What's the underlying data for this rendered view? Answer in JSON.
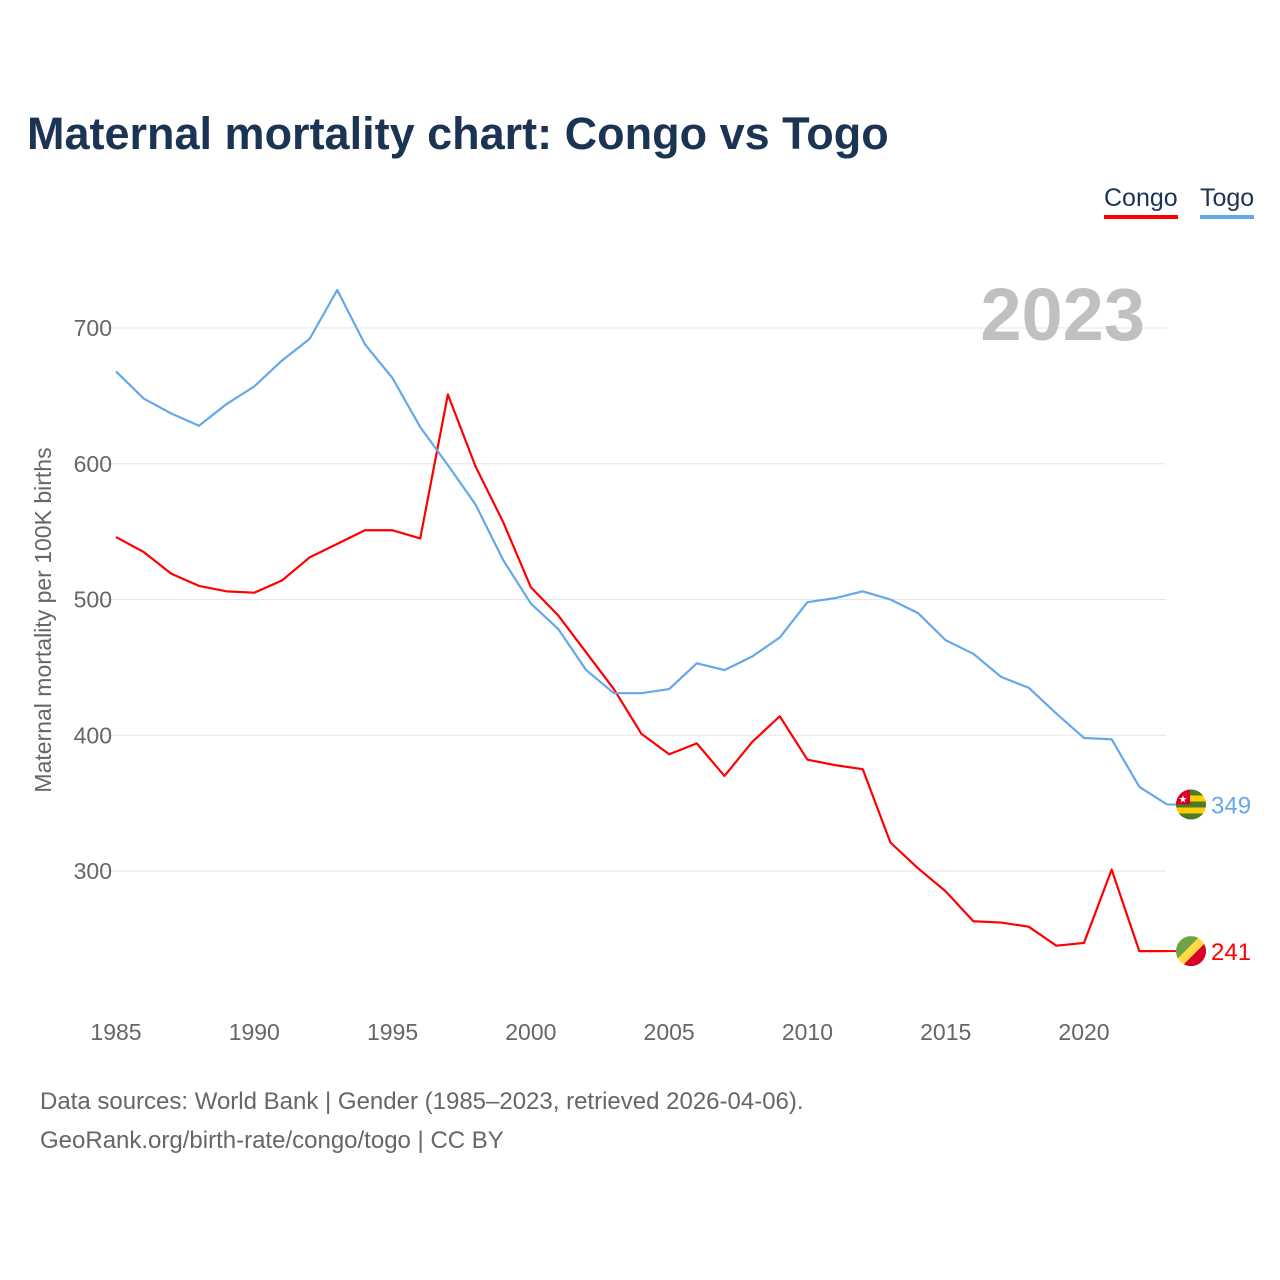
{
  "chart_data": {
    "type": "line",
    "title": "Maternal mortality chart: Congo vs Togo",
    "xlabel": "",
    "ylabel": "Maternal mortality per 100K births",
    "year_label": "2023",
    "x": [
      1985,
      1986,
      1987,
      1988,
      1989,
      1990,
      1991,
      1992,
      1993,
      1994,
      1995,
      1996,
      1997,
      1998,
      1999,
      2000,
      2001,
      2002,
      2003,
      2004,
      2005,
      2006,
      2007,
      2008,
      2009,
      2010,
      2011,
      2012,
      2013,
      2014,
      2015,
      2016,
      2017,
      2018,
      2019,
      2020,
      2021,
      2022,
      2023
    ],
    "xticks": [
      1985,
      1990,
      1995,
      2000,
      2005,
      2010,
      2015,
      2020
    ],
    "yticks": [
      300,
      400,
      500,
      600,
      700
    ],
    "xlim": [
      1985,
      2023
    ],
    "ylim": [
      200,
      750
    ],
    "grid": true,
    "legend_position": "top-right",
    "series": [
      {
        "name": "Congo",
        "color": "#ff0000",
        "end_label": "241",
        "values": [
          546,
          535,
          519,
          510,
          506,
          505,
          514,
          531,
          541,
          551,
          551,
          545,
          651,
          598,
          557,
          509,
          488,
          461,
          434,
          401,
          386,
          394,
          370,
          395,
          414,
          382,
          378,
          375,
          321,
          302,
          285,
          263,
          262,
          259,
          245,
          247,
          301,
          241,
          241
        ]
      },
      {
        "name": "Togo",
        "color": "#64a8ec",
        "end_label": "349",
        "values": [
          668,
          648,
          637,
          628,
          644,
          657,
          676,
          692,
          728,
          688,
          663,
          627,
          599,
          570,
          529,
          497,
          478,
          448,
          431,
          431,
          434,
          453,
          448,
          458,
          472,
          498,
          501,
          506,
          500,
          490,
          470,
          460,
          443,
          435,
          416,
          398,
          397,
          362,
          349
        ]
      }
    ]
  },
  "footer": {
    "line1": "Data sources: World Bank | Gender (1985–2023, retrieved 2026-04-06).",
    "line2": "GeoRank.org/birth-rate/congo/togo | CC BY"
  }
}
